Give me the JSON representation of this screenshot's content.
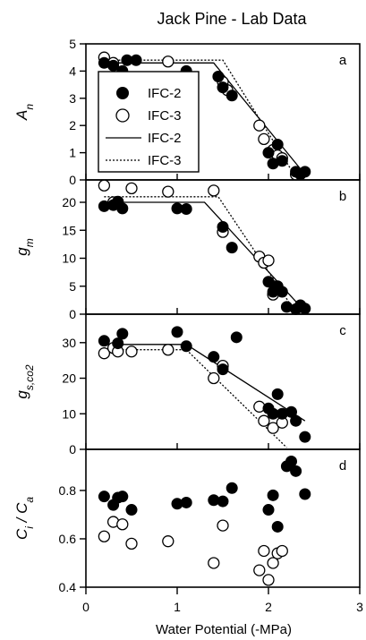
{
  "figure": {
    "title": "Jack Pine - Lab Data",
    "xlabel": "Water Potential (-MPa)",
    "legend": {
      "entries": [
        {
          "label": "IFC-2",
          "kind": "filled-marker"
        },
        {
          "label": "IFC-3",
          "kind": "open-marker"
        },
        {
          "label": "IFC-2",
          "kind": "solid-line"
        },
        {
          "label": "IFC-3",
          "kind": "dotted-line"
        }
      ],
      "placement": "left, panel a"
    }
  },
  "chart_data": [
    {
      "type": "scatter",
      "panel": "a",
      "ylabel": "A_n",
      "ylim": [
        0,
        5
      ],
      "xlim": [
        0,
        3
      ],
      "yticks": [
        0,
        1,
        2,
        3,
        4,
        5
      ],
      "xticks": [
        0,
        1,
        2,
        3
      ],
      "series": [
        {
          "name": "IFC-2",
          "marker": "filled",
          "points": [
            [
              0.2,
              4.3
            ],
            [
              0.3,
              4.2
            ],
            [
              0.4,
              4.0
            ],
            [
              0.45,
              4.4
            ],
            [
              0.55,
              4.4
            ],
            [
              1.1,
              4.0
            ],
            [
              1.45,
              3.8
            ],
            [
              1.5,
              3.4
            ],
            [
              1.6,
              3.1
            ],
            [
              2.0,
              1.0
            ],
            [
              2.05,
              0.6
            ],
            [
              2.1,
              1.3
            ],
            [
              2.15,
              0.7
            ],
            [
              2.3,
              0.3
            ],
            [
              2.35,
              0.2
            ],
            [
              2.4,
              0.3
            ]
          ]
        },
        {
          "name": "IFC-3",
          "marker": "open",
          "points": [
            [
              0.2,
              4.5
            ],
            [
              0.3,
              4.3
            ],
            [
              0.9,
              4.35
            ],
            [
              1.5,
              3.6
            ],
            [
              1.55,
              3.3
            ],
            [
              1.9,
              2.0
            ],
            [
              1.95,
              1.5
            ],
            [
              2.05,
              1.1
            ],
            [
              2.1,
              0.9
            ],
            [
              2.15,
              0.8
            ],
            [
              2.3,
              0.2
            ]
          ]
        },
        {
          "name": "IFC-2",
          "style": "solid-line",
          "points": [
            [
              0.2,
              4.3
            ],
            [
              1.4,
              4.3
            ],
            [
              2.4,
              0.2
            ]
          ]
        },
        {
          "name": "IFC-3",
          "style": "dotted-line",
          "points": [
            [
              0.2,
              4.4
            ],
            [
              1.5,
              4.4
            ],
            [
              2.3,
              0.1
            ]
          ]
        }
      ]
    },
    {
      "type": "scatter",
      "panel": "b",
      "ylabel": "g_m",
      "ylim": [
        0,
        24
      ],
      "xlim": [
        0,
        3
      ],
      "yticks": [
        0,
        5,
        10,
        15,
        20
      ],
      "xticks": [
        0,
        1,
        2,
        3
      ],
      "series": [
        {
          "name": "IFC-2",
          "marker": "filled",
          "points": [
            [
              0.2,
              19.3
            ],
            [
              0.3,
              19.5
            ],
            [
              0.35,
              20.0
            ],
            [
              0.4,
              18.9
            ],
            [
              1.0,
              18.9
            ],
            [
              1.1,
              18.8
            ],
            [
              1.5,
              15.6
            ],
            [
              1.6,
              11.9
            ],
            [
              2.0,
              5.8
            ],
            [
              2.05,
              4.0
            ],
            [
              2.1,
              5.0
            ],
            [
              2.15,
              4.0
            ],
            [
              2.2,
              1.3
            ],
            [
              2.3,
              0.9
            ],
            [
              2.35,
              1.6
            ],
            [
              2.4,
              1.0
            ]
          ]
        },
        {
          "name": "IFC-3",
          "marker": "open",
          "points": [
            [
              0.2,
              23.0
            ],
            [
              0.3,
              20.0
            ],
            [
              0.35,
              20.1
            ],
            [
              0.5,
              22.5
            ],
            [
              0.9,
              21.9
            ],
            [
              1.4,
              22.1
            ],
            [
              1.5,
              14.7
            ],
            [
              1.9,
              10.3
            ],
            [
              1.95,
              9.2
            ],
            [
              2.0,
              9.6
            ],
            [
              2.05,
              3.5
            ]
          ]
        },
        {
          "name": "IFC-2",
          "style": "solid-line",
          "points": [
            [
              0.2,
              20.0
            ],
            [
              1.3,
              20.0
            ],
            [
              2.4,
              0.5
            ]
          ]
        },
        {
          "name": "IFC-3",
          "style": "dotted-line",
          "points": [
            [
              0.2,
              21.0
            ],
            [
              1.45,
              21.0
            ],
            [
              2.3,
              0.3
            ]
          ]
        }
      ]
    },
    {
      "type": "scatter",
      "panel": "c",
      "ylabel": "g_s,co2",
      "ylim": [
        0,
        38
      ],
      "xlim": [
        0,
        3
      ],
      "yticks": [
        0,
        10,
        20,
        30
      ],
      "xticks": [
        0,
        1,
        2,
        3
      ],
      "series": [
        {
          "name": "IFC-2",
          "marker": "filled",
          "points": [
            [
              0.2,
              30.5
            ],
            [
              0.35,
              29.8
            ],
            [
              0.4,
              32.5
            ],
            [
              1.0,
              33.0
            ],
            [
              1.1,
              29.0
            ],
            [
              1.4,
              26.0
            ],
            [
              1.5,
              22.5
            ],
            [
              1.65,
              31.5
            ],
            [
              2.0,
              11.5
            ],
            [
              2.05,
              10.0
            ],
            [
              2.1,
              15.5
            ],
            [
              2.15,
              10.0
            ],
            [
              2.25,
              10.5
            ],
            [
              2.3,
              8.0
            ],
            [
              2.4,
              3.5
            ]
          ]
        },
        {
          "name": "IFC-3",
          "marker": "open",
          "points": [
            [
              0.2,
              27.0
            ],
            [
              0.3,
              28.5
            ],
            [
              0.35,
              27.5
            ],
            [
              0.5,
              27.5
            ],
            [
              0.9,
              28.0
            ],
            [
              1.4,
              20.0
            ],
            [
              1.5,
              23.5
            ],
            [
              1.9,
              12.0
            ],
            [
              1.95,
              8.0
            ],
            [
              2.05,
              6.0
            ],
            [
              2.15,
              7.5
            ]
          ]
        },
        {
          "name": "IFC-2",
          "style": "solid-line",
          "points": [
            [
              0.2,
              29.5
            ],
            [
              1.1,
              29.5
            ],
            [
              2.4,
              8.0
            ]
          ]
        },
        {
          "name": "IFC-3",
          "style": "dotted-line",
          "points": [
            [
              0.2,
              28.0
            ],
            [
              1.1,
              28.0
            ],
            [
              2.2,
              0.5
            ]
          ]
        }
      ]
    },
    {
      "type": "scatter",
      "panel": "d",
      "ylabel": "C_i / C_a",
      "ylim": [
        0.4,
        0.97
      ],
      "xlim": [
        0,
        3
      ],
      "yticks": [
        0.4,
        0.6,
        0.8
      ],
      "xticks": [
        0,
        1,
        2,
        3
      ],
      "series": [
        {
          "name": "IFC-2",
          "marker": "filled",
          "points": [
            [
              0.2,
              0.775
            ],
            [
              0.3,
              0.74
            ],
            [
              0.35,
              0.77
            ],
            [
              0.4,
              0.775
            ],
            [
              0.5,
              0.72
            ],
            [
              1.0,
              0.745
            ],
            [
              1.1,
              0.75
            ],
            [
              1.4,
              0.76
            ],
            [
              1.5,
              0.755
            ],
            [
              1.6,
              0.81
            ],
            [
              2.0,
              0.72
            ],
            [
              2.05,
              0.78
            ],
            [
              2.1,
              0.65
            ],
            [
              2.2,
              0.9
            ],
            [
              2.25,
              0.92
            ],
            [
              2.3,
              0.88
            ],
            [
              2.4,
              0.785
            ]
          ]
        },
        {
          "name": "IFC-3",
          "marker": "open",
          "points": [
            [
              0.2,
              0.61
            ],
            [
              0.3,
              0.67
            ],
            [
              0.4,
              0.66
            ],
            [
              0.5,
              0.58
            ],
            [
              0.9,
              0.59
            ],
            [
              1.4,
              0.5
            ],
            [
              1.5,
              0.655
            ],
            [
              1.9,
              0.47
            ],
            [
              1.95,
              0.55
            ],
            [
              2.0,
              0.43
            ],
            [
              2.05,
              0.5
            ],
            [
              2.1,
              0.54
            ],
            [
              2.15,
              0.55
            ]
          ]
        }
      ]
    }
  ]
}
